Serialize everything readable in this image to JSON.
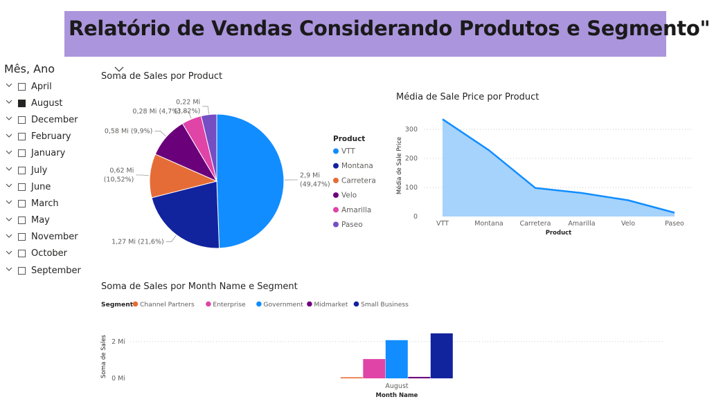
{
  "header": {
    "title": "Relatório de Vendas Considerando Produtos e Segmento\""
  },
  "slicer": {
    "title": "Mês, Ano",
    "items": [
      {
        "label": "April",
        "checked": false
      },
      {
        "label": "August",
        "checked": true
      },
      {
        "label": "December",
        "checked": false
      },
      {
        "label": "February",
        "checked": false
      },
      {
        "label": "January",
        "checked": false
      },
      {
        "label": "July",
        "checked": false
      },
      {
        "label": "June",
        "checked": false
      },
      {
        "label": "March",
        "checked": false
      },
      {
        "label": "May",
        "checked": false
      },
      {
        "label": "November",
        "checked": false
      },
      {
        "label": "October",
        "checked": false
      },
      {
        "label": "September",
        "checked": false
      }
    ]
  },
  "chart_data": [
    {
      "type": "pie",
      "title": "Soma de Sales por Product",
      "legend_title": "Product",
      "legend_position": "right",
      "slices": [
        {
          "name": "VTT",
          "value": 2.9,
          "label": "2,9 Mi\n(49,47%)",
          "color": "#118dff"
        },
        {
          "name": "Montana",
          "value": 1.27,
          "label": "1,27 Mi (21,6%)",
          "color": "#12239e"
        },
        {
          "name": "Carretera",
          "value": 0.62,
          "label": "0,62 Mi\n(10,52%)",
          "color": "#e66c37"
        },
        {
          "name": "Velo",
          "value": 0.58,
          "label": "0,58 Mi (9,9%)",
          "color": "#6b007b"
        },
        {
          "name": "Amarilla",
          "value": 0.28,
          "label": "0,28 Mi (4,7%)",
          "color": "#e044a7"
        },
        {
          "name": "Paseo",
          "value": 0.22,
          "label": "0,22 Mi\n(3,82%)",
          "color": "#744ec2"
        }
      ]
    },
    {
      "type": "area",
      "title": "Média de Sale Price por Product",
      "xlabel": "Product",
      "ylabel": "Média de Sale Price",
      "categories": [
        "VTT",
        "Montana",
        "Carretera",
        "Amarilla",
        "Velo",
        "Paseo"
      ],
      "values": [
        335,
        228,
        98,
        81,
        56,
        13
      ],
      "ylim": [
        0,
        350
      ],
      "yticks": [
        0,
        100,
        200,
        300
      ],
      "grid": true,
      "color": "#118dff",
      "fill": "#a6d3fb"
    },
    {
      "type": "bar",
      "title": "Soma de Sales por Month Name e Segment",
      "xlabel": "Month Name",
      "ylabel": "Soma de Sales",
      "legend_title": "Segment",
      "legend_position": "top-left",
      "categories": [
        "August"
      ],
      "series": [
        {
          "name": "Channel Partners",
          "values": [
            0.06
          ],
          "color": "#e66c37"
        },
        {
          "name": "Enterprise",
          "values": [
            1.05
          ],
          "color": "#e044a7"
        },
        {
          "name": "Government",
          "values": [
            2.08
          ],
          "color": "#118dff"
        },
        {
          "name": "Midmarket",
          "values": [
            0.08
          ],
          "color": "#6b007b"
        },
        {
          "name": "Small Business",
          "values": [
            2.45
          ],
          "color": "#12239e"
        }
      ],
      "yticks": [
        {
          "value": 0,
          "label": "0 Mi"
        },
        {
          "value": 2,
          "label": "2 Mi"
        }
      ],
      "ylim": [
        0,
        2.6
      ],
      "grid": true
    }
  ]
}
